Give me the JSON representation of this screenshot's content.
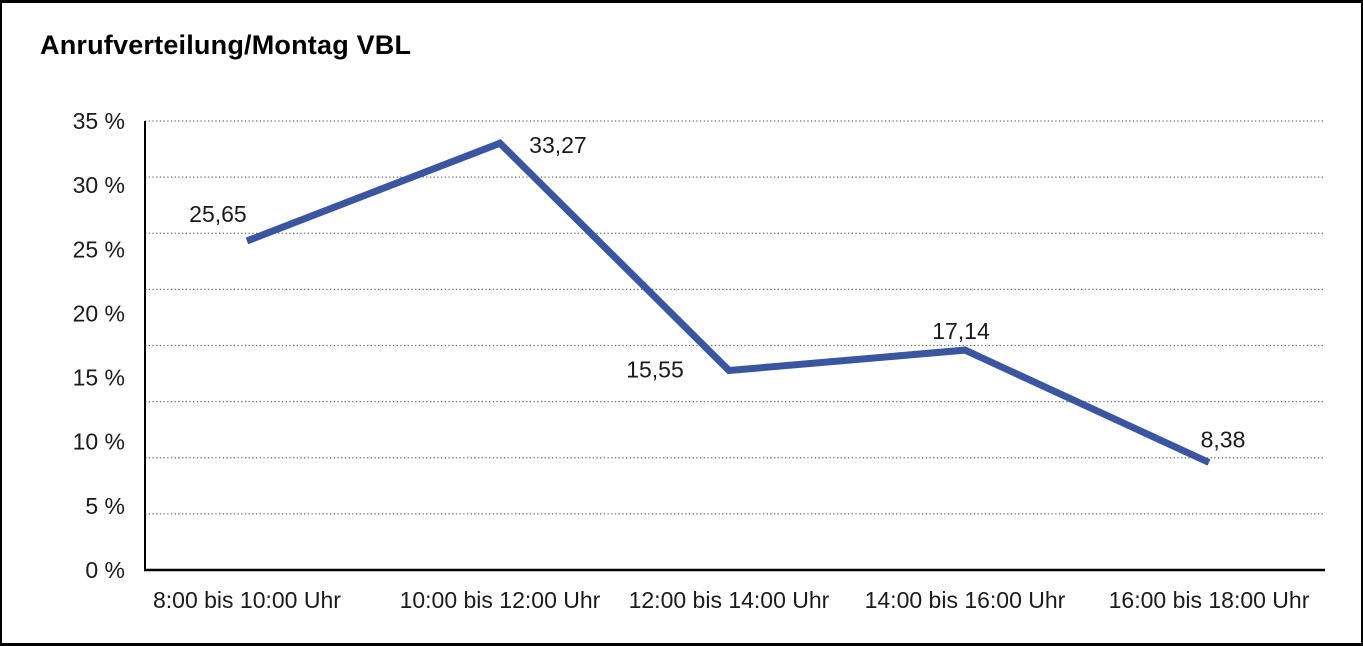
{
  "page": {
    "title": "Anrufverteilung/Montag VBL"
  },
  "chart_data": {
    "type": "line",
    "title": "Anrufverteilung/Montag VBL",
    "categories": [
      "8:00 bis 10:00 Uhr",
      "10:00 bis 12:00 Uhr",
      "12:00 bis 14:00 Uhr",
      "14:00 bis 16:00 Uhr",
      "16:00 bis 18:00 Uhr"
    ],
    "values": [
      25.65,
      33.27,
      15.55,
      17.14,
      8.38
    ],
    "value_labels": [
      "25,65",
      "33,27",
      "15,55",
      "17,14",
      "8,38"
    ],
    "y_tick_labels": [
      "35 %",
      "30 %",
      "25 %",
      "20 %",
      "15 %",
      "10 %",
      "5 %",
      "0 %"
    ],
    "y_tick_values": [
      35,
      30,
      25,
      20,
      15,
      10,
      5,
      0
    ],
    "ylim": [
      0,
      35
    ],
    "xlabel": "",
    "ylabel": "",
    "unit": "%",
    "grid": "horizontal-dotted",
    "grid_intervals": 8,
    "legend_position": "none",
    "line_color": "#3A56A2",
    "axis_color": "#000000",
    "grid_color": "#6b6b6b",
    "text_color": "#1a1a1a"
  }
}
